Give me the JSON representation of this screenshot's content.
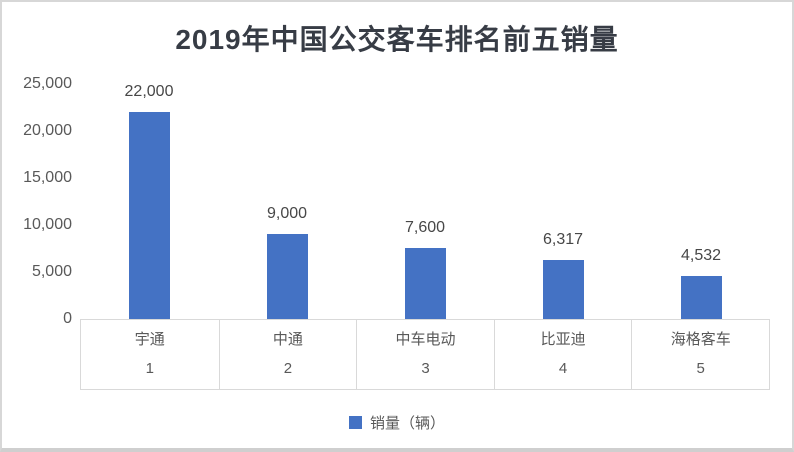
{
  "chart": {
    "title": "2019年中国公交客车排名前五销量",
    "legend_label": "销量（辆）"
  },
  "chart_data": {
    "type": "bar",
    "title": "2019年中国公交客车排名前五销量",
    "categories": [
      "宇通",
      "中通",
      "中车电动",
      "比亚迪",
      "海格客车"
    ],
    "ranks": [
      "1",
      "2",
      "3",
      "4",
      "5"
    ],
    "values": [
      22000,
      9000,
      7600,
      6317,
      4532
    ],
    "value_labels": [
      "22,000",
      "9,000",
      "7,600",
      "6,317",
      "4,532"
    ],
    "series_name": "销量（辆）",
    "xlabel": "",
    "ylabel": "",
    "ylim": [
      0,
      25000
    ],
    "ytick_values": [
      0,
      5000,
      10000,
      15000,
      20000,
      25000
    ],
    "ytick_labels": [
      "0",
      "5,000",
      "10,000",
      "15,000",
      "20,000",
      "25,000"
    ],
    "grid": false,
    "legend_position": "bottom",
    "bar_color": "#4472C4"
  }
}
